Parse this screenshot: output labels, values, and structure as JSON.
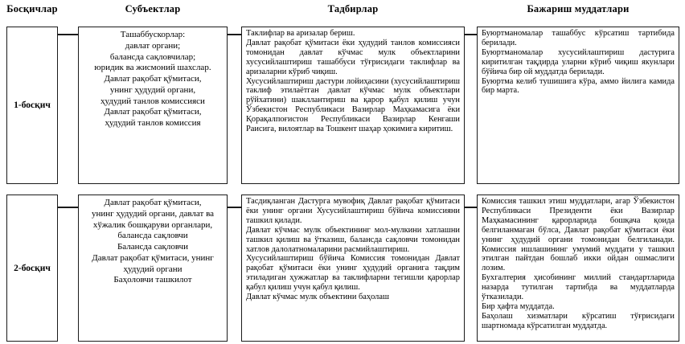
{
  "headers": {
    "stages": "Босқичлар",
    "subjects": "Субъектлар",
    "activities": "Тадбирлар",
    "deadlines": "Бажариш муддатлари"
  },
  "rows": [
    {
      "stage": "1-босқич",
      "subjects": [
        "Ташаббускорлар:\nдавлат органи;\nбалансда сақловчилар;\nюридик ва жисмоний шахслар.",
        "Давлат рақобат қўмитаси,\nунинг ҳудудий органи,\nҳудудий танлов комиссияси",
        "Давлат рақобат қўмитаси,\nҳудудий танлов комиссия"
      ],
      "activities": [
        "Таклифлар ва аризалар бериш.",
        "Давлат рақобат қўмитаси ёки ҳудудий танлов комиссияси томонидан давлат кўчмас мулк объектларини хусусийлаштириш ташаббуси тўғрисидаги таклифлар ва аризаларни кўриб чиқиш.",
        "Хусусийлаштириш дастури лойиҳасини (хусусийлаштириш таклиф этилаётган давлат кўчмас мулк объектлари рўйхатини) шакллантириш ва қарор қабул қилиш учун Ўзбекистон Республикаси Вазирлар Маҳкамасига ёки Қорақалпоғистон Республикаси Вазирлар Кенгаши Раисига, вилоятлар ва Тошкент шаҳар ҳокимига киритиш."
      ],
      "deadlines": [
        "Буюртманомалар ташаббус кўрсатиш тартибида берилади.",
        "Буюртманомалар хусусийлаштириш дастурига киритилган тақдирда уларни кўриб чиқиш якунлари бўйича бир ой муддатда берилади.",
        "Буюртма келиб тушишига кўра, аммо йилига камида бир марта."
      ]
    },
    {
      "stage": "2-босқич",
      "subjects": [
        "Давлат рақобат қўмитаси,\nунинг ҳудудий органи, давлат ва\nхўжалик бошқаруви органлари,\nбалансда сақловчи",
        "Балансда сақловчи",
        "Давлат рақобат қўмитаси, унинг\nҳудудий органи",
        "Баҳоловчи ташкилот"
      ],
      "activities": [
        "Тасдиқланган Дастурга мувофиқ Давлат рақобат қўмитаси ёки унинг органи Хусусийлаштириш бўйича комиссияни ташкил қилади.",
        "Давлат кўчмас мулк объектининг мол-мулкини хатлашни ташкил қилиш ва ўтказиш, балансда сақловчи томонидан хатлов далолатномаларини расмийлаштириш.",
        "Хусусийлаштириш бўйича Комиссия томонидан Давлат рақобат қўмитаси ёки унинг ҳудудий органига тақдим этиладиган ҳужжатлар ва таклифларни тегишли қарорлар қабул қилиш учун қабул қилиш.",
        "Давлат кўчмас мулк объектини баҳолаш"
      ],
      "deadlines": [
        "Комиссия ташкил этиш муддатлари, агар Ўзбекистон Республикаси Президенти ёки Вазирлар Маҳкамасининг қарорларида бошқача қоида белгиланмаган бўлса, Давлат рақобат қўмитаси ёки унинг ҳудудий органи томонидан белгиланади. Комиссия ишлашининг умумий муддати у ташкил этилган пайтдан бошлаб икки ойдан ошмаслиги лозим.",
        "Бухгалтерия ҳисобининг миллий стандартларида назарда тутилган тартибда ва муддатларда ўтказилади.",
        "Бир ҳафта муддатда.",
        "Баҳолаш хизматлари кўрсатиш тўғрисидаги шартномада кўрсатилган муддатда."
      ]
    }
  ],
  "colors": {
    "border": "#1a1a1a",
    "text": "#000000",
    "background": "#ffffff"
  }
}
